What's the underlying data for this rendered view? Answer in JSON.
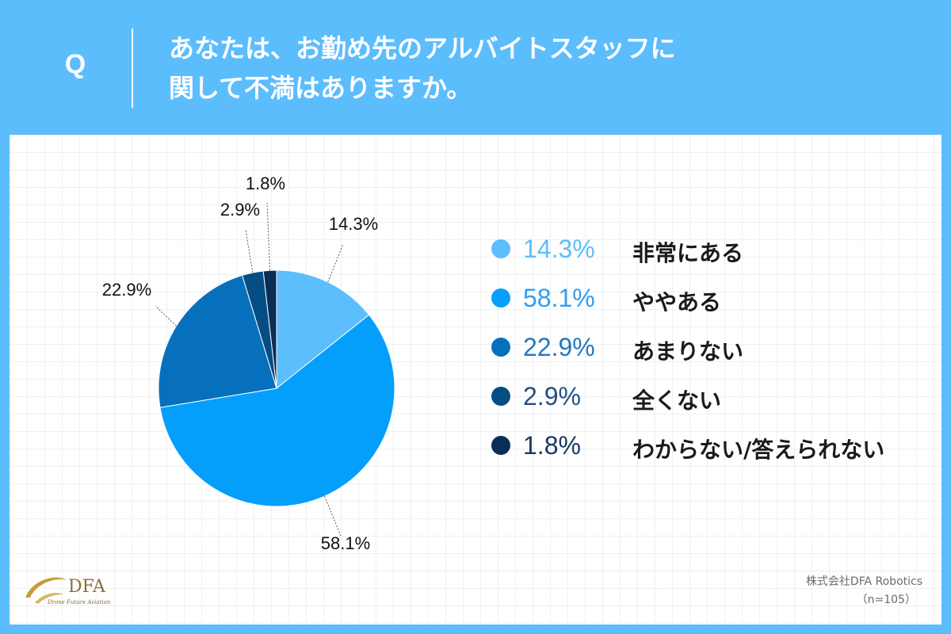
{
  "header": {
    "q_mark": "Q",
    "question_line1": "あなたは、お勤め先のアルバイトスタッフに",
    "question_line2": "関して不満はありますか。"
  },
  "chart_data": {
    "type": "pie",
    "categories": [
      "非常にある",
      "ややある",
      "あまりない",
      "全くない",
      "わからない/答えられない"
    ],
    "values": [
      14.3,
      58.1,
      22.9,
      2.9,
      1.8
    ],
    "value_labels": [
      "14.3%",
      "58.1%",
      "22.9%",
      "2.9%",
      "1.8%"
    ],
    "colors": [
      "#5dbefd",
      "#049ffb",
      "#0670bd",
      "#054d85",
      "#082e59"
    ],
    "legend_value_colors": [
      "#5dbefd",
      "#2f9ef0",
      "#2677bd",
      "#244f82",
      "#173a62"
    ],
    "start_angle_deg": 0,
    "direction": "clockwise",
    "legend_position": "right"
  },
  "legend": [
    {
      "value": "14.3%",
      "label": "非常にある"
    },
    {
      "value": "58.1%",
      "label": "ややある"
    },
    {
      "value": "22.9%",
      "label": "あまりない"
    },
    {
      "value": "2.9%",
      "label": "全くない"
    },
    {
      "value": "1.8%",
      "label": "わからない/答えられない"
    }
  ],
  "footer": {
    "logo_text": "DFA",
    "logo_subtext": "Drone Future Aviation",
    "source": "株式会社DFA Robotics",
    "sample_size": "（n=105）"
  }
}
